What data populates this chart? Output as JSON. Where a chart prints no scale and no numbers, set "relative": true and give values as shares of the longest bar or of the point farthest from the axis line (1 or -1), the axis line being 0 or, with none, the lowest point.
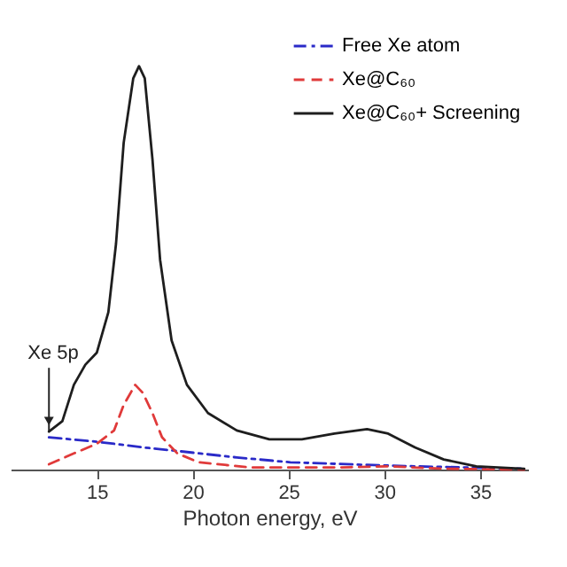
{
  "chart_data": {
    "type": "line",
    "xlabel": "Photon energy, eV",
    "relative": true,
    "xlim": [
      10.5,
      37.5
    ],
    "xticks": [
      15,
      20,
      25,
      30,
      35
    ],
    "grid": false,
    "legend": "top right",
    "marker": "none",
    "annotations": [
      {
        "text": "Xe 5p",
        "x": 12.5,
        "y": 0.094
      }
    ],
    "series": [
      {
        "name": "Free Xe atom",
        "color": "#2a2ac8",
        "line_style": "dashdot",
        "x": [
          12.5,
          15,
          17.4,
          19.4,
          22.3,
          25.1,
          28.8,
          31.6,
          37.3
        ],
        "values": [
          0.08,
          0.069,
          0.055,
          0.045,
          0.03,
          0.018,
          0.012,
          0.008,
          0.002
        ]
      },
      {
        "name": "Xe@C₆₀",
        "color": "#e03a3a",
        "line_style": "dashed",
        "x": [
          12.5,
          13.8,
          15,
          15.9,
          16.4,
          17.0,
          17.4,
          17.9,
          18.4,
          19.2,
          20.3,
          23.1,
          27.4,
          30.2,
          33.1,
          37.3
        ],
        "values": [
          0.013,
          0.04,
          0.064,
          0.097,
          0.16,
          0.21,
          0.19,
          0.14,
          0.08,
          0.04,
          0.018,
          0.005,
          0.005,
          0.008,
          0.002,
          0
        ]
      },
      {
        "name": "Xe@C₆₀+ Screening",
        "color": "#1e1e1e",
        "line_style": "solid",
        "x": [
          12.5,
          13.2,
          13.8,
          14.4,
          15,
          15.6,
          16.0,
          16.4,
          16.9,
          17.2,
          17.5,
          17.9,
          18.3,
          18.9,
          19.7,
          20.8,
          22.3,
          24,
          25.7,
          27.4,
          29.1,
          30.2,
          31.6,
          33.1,
          34.8,
          37.3
        ],
        "values": [
          0.094,
          0.12,
          0.21,
          0.26,
          0.29,
          0.39,
          0.56,
          0.81,
          0.97,
          1.0,
          0.97,
          0.77,
          0.52,
          0.32,
          0.21,
          0.14,
          0.097,
          0.075,
          0.075,
          0.089,
          0.1,
          0.089,
          0.055,
          0.025,
          0.008,
          0.002
        ]
      }
    ]
  }
}
